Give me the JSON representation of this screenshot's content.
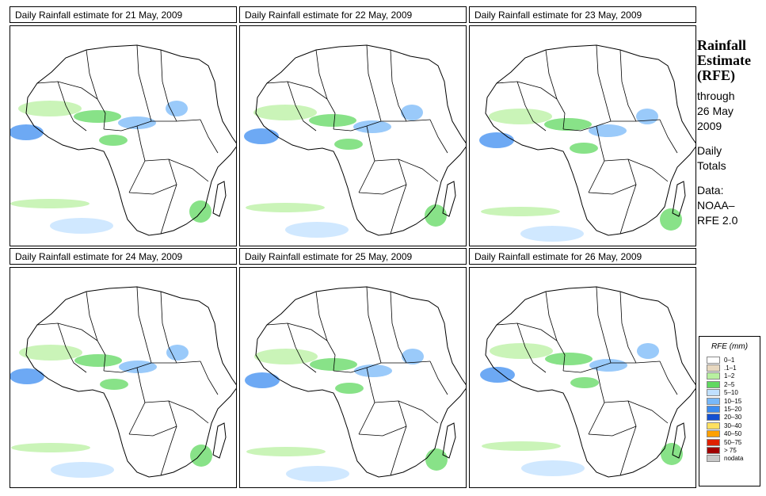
{
  "panels": [
    {
      "title": "Daily Rainfall estimate for  21 May, 2009"
    },
    {
      "title": "Daily Rainfall estimate for  22 May, 2009"
    },
    {
      "title": "Daily Rainfall estimate for  23 May, 2009"
    },
    {
      "title": "Daily Rainfall estimate for  24 May, 2009"
    },
    {
      "title": "Daily Rainfall estimate for  25 May, 2009"
    },
    {
      "title": "Daily Rainfall estimate for  26 May, 2009"
    }
  ],
  "sidebar": {
    "title_line1": "Rainfall",
    "title_line2": "Estimate",
    "title_line3": "(RFE)",
    "through_line1": "through",
    "through_line2": "26 May",
    "through_line3": "2009",
    "totals_line1": "Daily",
    "totals_line2": "Totals",
    "source_line1": "Data:",
    "source_line2": "NOAA–",
    "source_line3": "RFE 2.0"
  },
  "legend": {
    "title": "RFE (mm)",
    "items": [
      {
        "label": "0–1",
        "color": "#ffffff"
      },
      {
        "label": ".1–1",
        "color": "#e8d8c0"
      },
      {
        "label": "1–2",
        "color": "#b8f0a0"
      },
      {
        "label": "2–5",
        "color": "#60d860"
      },
      {
        "label": "5–10",
        "color": "#c0e0ff"
      },
      {
        "label": "10–15",
        "color": "#78b8f8"
      },
      {
        "label": "15–20",
        "color": "#3c8cf0"
      },
      {
        "label": "20–30",
        "color": "#1450d0"
      },
      {
        "label": "30–40",
        "color": "#ffe060"
      },
      {
        "label": "40–50",
        "color": "#ffa000"
      },
      {
        "label": "50–75",
        "color": "#e02000"
      },
      {
        "label": "> 75",
        "color": "#a00000"
      },
      {
        "label": "nodata",
        "color": "#c8c8c8"
      }
    ]
  }
}
